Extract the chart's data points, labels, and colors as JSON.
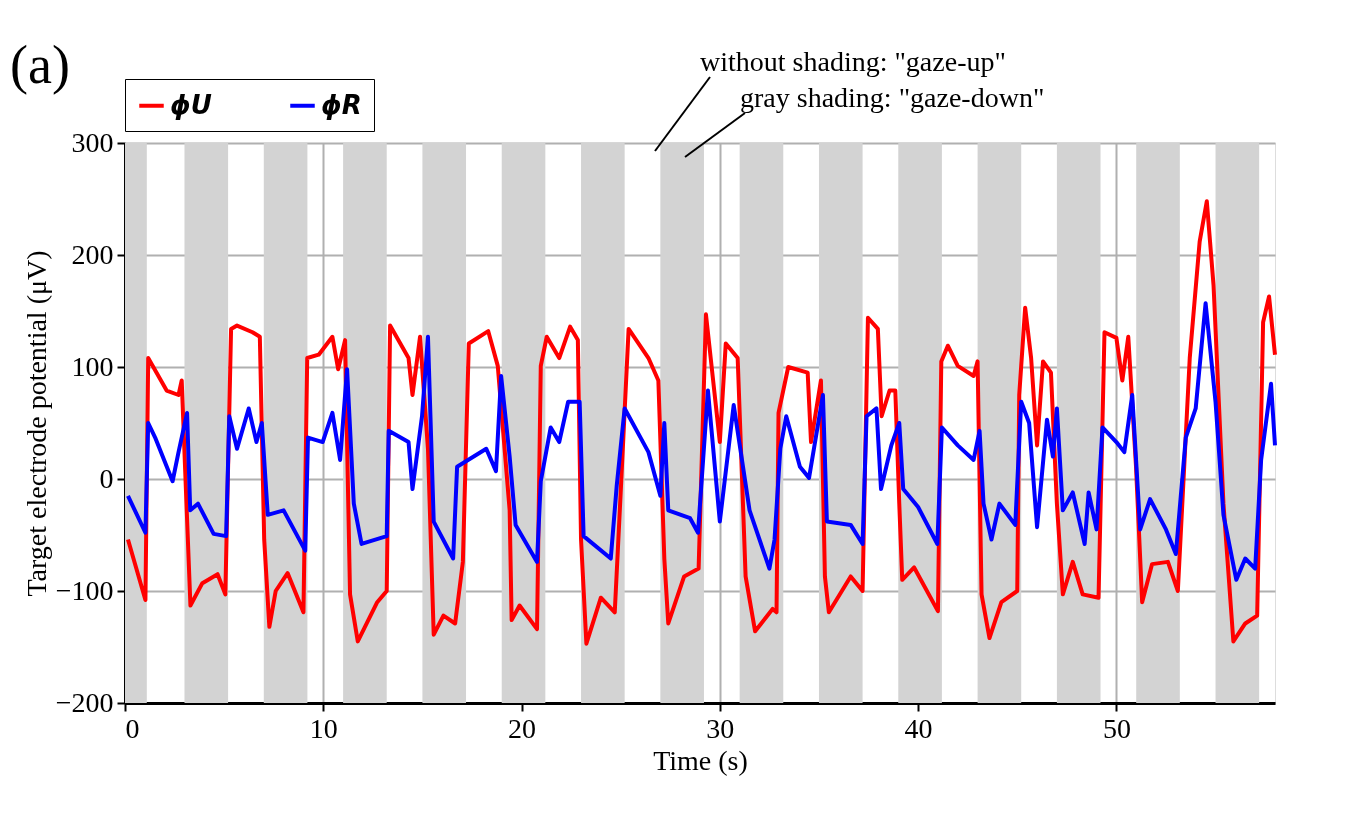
{
  "chart_data": {
    "type": "line",
    "xlabel": "Time (s)",
    "ylabel": "Target electrode potential (μV)",
    "xlim": [
      0,
      58
    ],
    "ylim": [
      -200,
      300
    ],
    "xticks": [
      0,
      10,
      20,
      30,
      40,
      50
    ],
    "yticks": [
      -200,
      -100,
      0,
      100,
      200,
      300
    ],
    "grid": true,
    "legend": "top left",
    "line_style": "solid",
    "marker": "none",
    "annotations": [
      "(a)",
      "without shading: \"gaze-up\"",
      "gray shading: \"gaze-down\""
    ],
    "bands": [
      {
        "axis": "x",
        "from": 0,
        "to": 1.1,
        "color": "#d3d3d3"
      },
      {
        "axis": "x",
        "from": 3,
        "to": 5.2,
        "color": "#d3d3d3"
      },
      {
        "axis": "x",
        "from": 7,
        "to": 9.2,
        "color": "#d3d3d3"
      },
      {
        "axis": "x",
        "from": 11,
        "to": 13.2,
        "color": "#d3d3d3"
      },
      {
        "axis": "x",
        "from": 15,
        "to": 17.2,
        "color": "#d3d3d3"
      },
      {
        "axis": "x",
        "from": 19,
        "to": 21.2,
        "color": "#d3d3d3"
      },
      {
        "axis": "x",
        "from": 23,
        "to": 25.2,
        "color": "#d3d3d3"
      },
      {
        "axis": "x",
        "from": 27,
        "to": 29.2,
        "color": "#d3d3d3"
      },
      {
        "axis": "x",
        "from": 31,
        "to": 33.2,
        "color": "#d3d3d3"
      },
      {
        "axis": "x",
        "from": 35,
        "to": 37.2,
        "color": "#d3d3d3"
      },
      {
        "axis": "x",
        "from": 39,
        "to": 41.2,
        "color": "#d3d3d3"
      },
      {
        "axis": "x",
        "from": 43,
        "to": 45.2,
        "color": "#d3d3d3"
      },
      {
        "axis": "x",
        "from": 47,
        "to": 49.2,
        "color": "#d3d3d3"
      },
      {
        "axis": "x",
        "from": 51,
        "to": 53.2,
        "color": "#d3d3d3"
      },
      {
        "axis": "x",
        "from": 55,
        "to": 57.2,
        "color": "#d3d3d3"
      }
    ],
    "series": [
      {
        "name": "ϕU",
        "color": "#ff0000",
        "x": [
          0.15,
          1.03,
          1.17,
          2.1,
          2.7,
          2.86,
          3.1,
          3.3,
          3.9,
          4.67,
          5.06,
          5.35,
          5.65,
          6.43,
          6.8,
          7.02,
          7.28,
          7.6,
          8.2,
          9.0,
          9.19,
          9.77,
          10.46,
          10.75,
          11.1,
          11.35,
          11.74,
          12.72,
          13.2,
          13.37,
          14.3,
          14.5,
          14.88,
          15.28,
          15.57,
          16.06,
          16.65,
          17.04,
          17.34,
          18.32,
          18.8,
          19.4,
          19.5,
          19.9,
          20.78,
          20.97,
          21.27,
          21.9,
          22.45,
          22.84,
          23.0,
          23.27,
          24.0,
          24.7,
          25.0,
          25.4,
          26.4,
          26.9,
          27.2,
          27.4,
          28.2,
          28.93,
          29.3,
          30.0,
          30.3,
          30.9,
          31.3,
          31.78,
          32.66,
          32.86,
          32.96,
          33.45,
          34.43,
          34.6,
          35.1,
          35.3,
          35.5,
          36.6,
          37.2,
          37.47,
          37.97,
          38.16,
          38.56,
          38.85,
          39.05,
          39.2,
          39.8,
          41.0,
          41.17,
          41.5,
          42.0,
          42.8,
          43.0,
          43.2,
          43.6,
          44.2,
          45.0,
          45.1,
          45.4,
          45.7,
          46.0,
          46.3,
          46.7,
          47.0,
          47.3,
          47.8,
          48.3,
          49.1,
          49.4,
          50.0,
          50.3,
          50.6,
          50.99,
          51.3,
          51.8,
          52.6,
          53.1,
          53.7,
          54.2,
          54.56,
          54.9,
          55.4,
          55.9,
          56.5,
          57.1,
          57.4,
          57.7,
          58.0
        ],
        "values": [
          -54,
          -108,
          108,
          79,
          75,
          88,
          -22,
          -113,
          -93,
          -85,
          -103,
          134,
          137,
          131,
          127,
          -54,
          -132,
          -100,
          -84,
          -119,
          108,
          111,
          127,
          98,
          124,
          -103,
          -145,
          -110,
          -100,
          137,
          108,
          75,
          127,
          27,
          -139,
          -122,
          -129,
          -74,
          121,
          132,
          101,
          -28,
          -126,
          -113,
          -134,
          101,
          127,
          108,
          136,
          124,
          -54,
          -147,
          -106,
          -119,
          -12,
          134,
          108,
          88,
          -71,
          -129,
          -87,
          -80,
          147,
          33,
          121,
          108,
          -87,
          -136,
          -116,
          -119,
          59,
          100,
          95,
          33,
          88,
          -87,
          -119,
          -87,
          -100,
          144,
          134,
          56,
          79,
          79,
          -22,
          -90,
          -79,
          -118,
          105,
          119,
          101,
          92,
          105,
          -103,
          -142,
          -110,
          -100,
          75,
          153,
          108,
          30,
          105,
          95,
          -22,
          -103,
          -74,
          -103,
          -106,
          131,
          126,
          88,
          127,
          11,
          -110,
          -76,
          -74,
          -100,
          108,
          212,
          248,
          173,
          -22,
          -145,
          -129,
          -122,
          140,
          163,
          111
        ]
      },
      {
        "name": "ϕR",
        "color": "#0000ff",
        "x": [
          0.15,
          1.03,
          1.17,
          1.52,
          2.4,
          2.7,
          3.13,
          3.29,
          3.68,
          4.47,
          5.1,
          5.26,
          5.65,
          6.24,
          6.63,
          6.9,
          7.2,
          8.0,
          9.09,
          9.23,
          9.97,
          10.46,
          10.85,
          11.2,
          11.54,
          11.93,
          13.2,
          13.3,
          14.3,
          14.5,
          14.98,
          15.28,
          15.57,
          16.55,
          16.75,
          18.22,
          18.71,
          18.97,
          19.4,
          19.7,
          20.78,
          20.97,
          21.47,
          21.9,
          22.35,
          22.93,
          23.13,
          24.5,
          24.8,
          25.2,
          26.4,
          27.0,
          27.2,
          27.4,
          28.5,
          28.9,
          29.4,
          30.0,
          30.7,
          31.5,
          32.5,
          32.76,
          33.05,
          33.35,
          34.04,
          34.5,
          35.2,
          35.4,
          36.6,
          37.2,
          37.4,
          37.9,
          38.13,
          38.65,
          39.05,
          39.25,
          40.0,
          40.97,
          41.2,
          42.0,
          42.8,
          43.1,
          43.3,
          43.7,
          44.1,
          44.9,
          45.2,
          45.6,
          46.0,
          46.5,
          46.8,
          47.0,
          47.3,
          47.8,
          48.4,
          48.6,
          49.0,
          49.3,
          50.0,
          50.4,
          50.8,
          51.2,
          51.7,
          52.5,
          53.0,
          53.5,
          54.0,
          54.5,
          55.0,
          55.4,
          56.05,
          56.5,
          57.0,
          57.3,
          57.8,
          58.0
        ],
        "values": [
          -15,
          -48,
          50,
          37,
          -2,
          24,
          59,
          -28,
          -22,
          -49,
          -51,
          56,
          27,
          63,
          33,
          50,
          -32,
          -28,
          -64,
          37,
          33,
          59,
          17,
          98,
          -22,
          -58,
          -51,
          43,
          33,
          -9,
          56,
          127,
          -38,
          -71,
          11,
          27,
          7,
          92,
          20,
          -41,
          -74,
          -2,
          46,
          33,
          69,
          69,
          -51,
          -71,
          -6,
          63,
          24,
          -15,
          50,
          -28,
          -35,
          -48,
          79,
          -38,
          66,
          -28,
          -80,
          -54,
          27,
          56,
          11,
          1,
          75,
          -38,
          -41,
          -58,
          56,
          63,
          -9,
          30,
          50,
          -9,
          -25,
          -58,
          46,
          30,
          17,
          43,
          -22,
          -54,
          -22,
          -41,
          69,
          50,
          -43,
          53,
          20,
          63,
          -28,
          -12,
          -58,
          -12,
          -45,
          46,
          33,
          24,
          75,
          -45,
          -18,
          -45,
          -67,
          37,
          63,
          157,
          69,
          -32,
          -90,
          -71,
          -80,
          17,
          85,
          30
        ]
      }
    ]
  }
}
